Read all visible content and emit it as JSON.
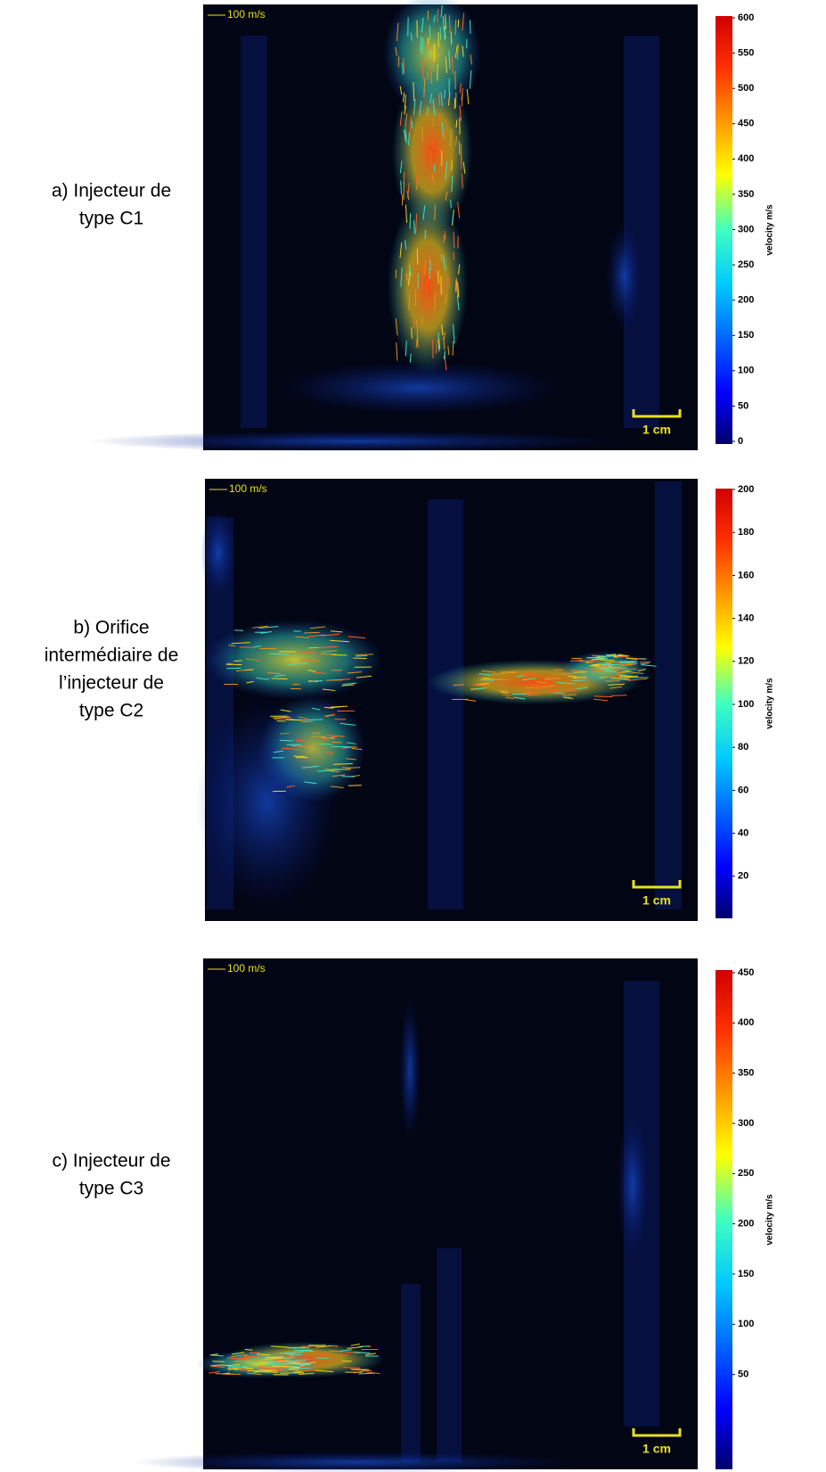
{
  "panels": [
    {
      "label_lines": [
        "a) Injecteur de",
        "type C1"
      ],
      "arrow_label": "100 m/s",
      "scale_label": "1 cm",
      "colorbar": {
        "title": "velocity m/s",
        "lim": [
          0,
          600
        ],
        "ticks": [
          0,
          50,
          100,
          150,
          200,
          250,
          300,
          350,
          400,
          450,
          500,
          550,
          600
        ]
      }
    },
    {
      "label_lines": [
        "b) Orifice",
        "intermédiaire de",
        "l’injecteur de",
        "type C2"
      ],
      "arrow_label": "100 m/s",
      "scale_label": "1 cm",
      "colorbar": {
        "title": "velocity m/s",
        "lim": [
          0,
          200
        ],
        "ticks": [
          20,
          40,
          60,
          80,
          100,
          120,
          140,
          160,
          180,
          200
        ]
      }
    },
    {
      "label_lines": [
        "c) Injecteur de",
        "type C3"
      ],
      "arrow_label": "100 m/s",
      "scale_label": "1 cm",
      "colorbar": {
        "title": "velocity m/s",
        "lim": [
          0,
          450
        ],
        "ticks": [
          50,
          100,
          150,
          200,
          250,
          300,
          350,
          400,
          450
        ]
      }
    }
  ]
}
